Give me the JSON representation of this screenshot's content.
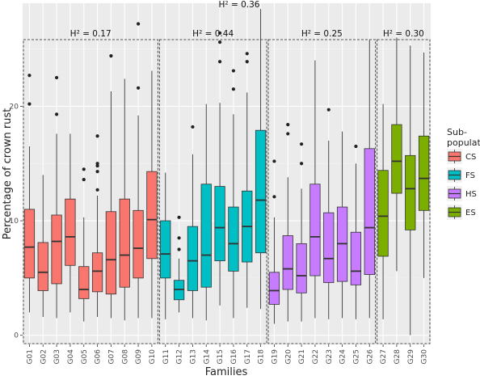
{
  "chart_data": {
    "type": "box",
    "xlabel": "Families",
    "ylabel": "Percentage of crown rust",
    "ylim": [
      -0.8,
      29
    ],
    "yticks": [
      0,
      10,
      20
    ],
    "grid": true,
    "overall_h2": "H² = 0.36",
    "legend": {
      "title_lines": [
        "Sub-",
        "population"
      ],
      "placement": "right",
      "entries": [
        {
          "key": "CS",
          "label": "CS",
          "color": "#F8766D"
        },
        {
          "key": "FS",
          "label": "FS",
          "color": "#00BFC4"
        },
        {
          "key": "HS",
          "label": "HS",
          "color": "#C77CFF"
        },
        {
          "key": "ES",
          "label": "ES",
          "color": "#7CAE00"
        }
      ]
    },
    "groups": [
      {
        "key": "CS",
        "h2": "H² = 0.17",
        "from": 0,
        "to": 9
      },
      {
        "key": "FS",
        "h2": "H² = 0.44",
        "from": 10,
        "to": 17
      },
      {
        "key": "HS",
        "h2": "H² = 0.25",
        "from": 18,
        "to": 25
      },
      {
        "key": "ES",
        "h2": "H² = 0.30",
        "from": 26,
        "to": 29
      }
    ],
    "families": [
      {
        "name": "G01",
        "group": "CS",
        "min": 2.0,
        "q1": 5.0,
        "median": 7.7,
        "q3": 11.0,
        "max": 16.5,
        "outliers": [
          20.2,
          22.7
        ]
      },
      {
        "name": "G02",
        "group": "CS",
        "min": 1.6,
        "q1": 3.9,
        "median": 5.5,
        "q3": 8.1,
        "max": 14.0,
        "outliers": []
      },
      {
        "name": "G03",
        "group": "CS",
        "min": 1.5,
        "q1": 4.5,
        "median": 8.2,
        "q3": 10.5,
        "max": 17.6,
        "outliers": [
          19.3,
          22.5
        ]
      },
      {
        "name": "G04",
        "group": "CS",
        "min": 2.0,
        "q1": 6.1,
        "median": 8.6,
        "q3": 11.9,
        "max": 17.6,
        "outliers": []
      },
      {
        "name": "G05",
        "group": "CS",
        "min": 1.2,
        "q1": 3.2,
        "median": 4.0,
        "q3": 6.0,
        "max": 10.3,
        "outliers": [
          13.6,
          14.5
        ]
      },
      {
        "name": "G06",
        "group": "CS",
        "min": 1.6,
        "q1": 3.8,
        "median": 5.6,
        "q3": 7.2,
        "max": 12.2,
        "outliers": [
          12.7,
          14.3,
          14.8,
          15.0,
          17.4
        ]
      },
      {
        "name": "G07",
        "group": "CS",
        "min": 1.5,
        "q1": 3.6,
        "median": 6.6,
        "q3": 10.8,
        "max": 21.3,
        "outliers": [
          24.4
        ]
      },
      {
        "name": "G08",
        "group": "CS",
        "min": 1.3,
        "q1": 4.2,
        "median": 7.0,
        "q3": 11.9,
        "max": 22.4,
        "outliers": []
      },
      {
        "name": "G09",
        "group": "CS",
        "min": 1.5,
        "q1": 5.0,
        "median": 7.6,
        "q3": 10.9,
        "max": 19.2,
        "outliers": [
          21.6,
          27.2
        ]
      },
      {
        "name": "G10",
        "group": "CS",
        "min": 1.5,
        "q1": 6.7,
        "median": 10.1,
        "q3": 14.3,
        "max": 23.1,
        "outliers": []
      },
      {
        "name": "G11",
        "group": "FS",
        "min": 1.4,
        "q1": 5.0,
        "median": 7.1,
        "q3": 10.0,
        "max": 14.2,
        "outliers": []
      },
      {
        "name": "G12",
        "group": "FS",
        "min": 2.0,
        "q1": 3.1,
        "median": 4.0,
        "q3": 4.8,
        "max": 6.7,
        "outliers": [
          7.5,
          8.5,
          10.3
        ]
      },
      {
        "name": "G13",
        "group": "FS",
        "min": 1.5,
        "q1": 3.9,
        "median": 6.5,
        "q3": 9.5,
        "max": 15.8,
        "outliers": [
          18.2
        ]
      },
      {
        "name": "G14",
        "group": "FS",
        "min": 1.3,
        "q1": 4.2,
        "median": 7.0,
        "q3": 13.2,
        "max": 20.2,
        "outliers": []
      },
      {
        "name": "G15",
        "group": "FS",
        "min": 2.6,
        "q1": 6.5,
        "median": 9.4,
        "q3": 13.0,
        "max": 20.3,
        "outliers": [
          23.9,
          25.6,
          26.4
        ]
      },
      {
        "name": "G16",
        "group": "FS",
        "min": 1.5,
        "q1": 5.6,
        "median": 8.0,
        "q3": 11.2,
        "max": 19.3,
        "outliers": [
          21.5,
          23.1
        ]
      },
      {
        "name": "G17",
        "group": "FS",
        "min": 2.4,
        "q1": 6.4,
        "median": 9.5,
        "q3": 12.6,
        "max": 21.2,
        "outliers": [
          23.9,
          24.6
        ]
      },
      {
        "name": "G18",
        "group": "FS",
        "min": 2.3,
        "q1": 7.2,
        "median": 11.8,
        "q3": 17.9,
        "max": 28.5,
        "outliers": []
      },
      {
        "name": "G19",
        "group": "HS",
        "min": 1.0,
        "q1": 2.7,
        "median": 3.9,
        "q3": 5.5,
        "max": 10.3,
        "outliers": [
          12.1,
          15.2
        ]
      },
      {
        "name": "G20",
        "group": "HS",
        "min": 1.2,
        "q1": 4.0,
        "median": 5.8,
        "q3": 8.7,
        "max": 13.8,
        "outliers": [
          17.6,
          18.4
        ]
      },
      {
        "name": "G21",
        "group": "HS",
        "min": 1.2,
        "q1": 3.7,
        "median": 5.2,
        "q3": 8.0,
        "max": 12.8,
        "outliers": [
          15.0,
          16.7
        ]
      },
      {
        "name": "G22",
        "group": "HS",
        "min": 1.5,
        "q1": 5.2,
        "median": 8.6,
        "q3": 13.2,
        "max": 24.0,
        "outliers": []
      },
      {
        "name": "G23",
        "group": "HS",
        "min": 1.4,
        "q1": 4.6,
        "median": 6.7,
        "q3": 10.7,
        "max": 17.0,
        "outliers": [
          19.7
        ]
      },
      {
        "name": "G24",
        "group": "HS",
        "min": 1.5,
        "q1": 4.7,
        "median": 8.0,
        "q3": 11.2,
        "max": 17.8,
        "outliers": []
      },
      {
        "name": "G25",
        "group": "HS",
        "min": 1.4,
        "q1": 4.4,
        "median": 5.6,
        "q3": 9.0,
        "max": 15.0,
        "outliers": [
          16.5
        ]
      },
      {
        "name": "G26",
        "group": "HS",
        "min": 1.5,
        "q1": 5.3,
        "median": 9.4,
        "q3": 16.3,
        "max": 25.8,
        "outliers": []
      },
      {
        "name": "G27",
        "group": "ES",
        "min": 1.4,
        "q1": 6.9,
        "median": 10.4,
        "q3": 14.4,
        "max": 20.2,
        "outliers": []
      },
      {
        "name": "G28",
        "group": "ES",
        "min": 5.6,
        "q1": 12.4,
        "median": 15.2,
        "q3": 18.4,
        "max": 26.0,
        "outliers": []
      },
      {
        "name": "G29",
        "group": "ES",
        "min": 0.0,
        "q1": 9.2,
        "median": 12.8,
        "q3": 15.7,
        "max": 25.3,
        "outliers": []
      },
      {
        "name": "G30",
        "group": "ES",
        "min": 5.0,
        "q1": 10.9,
        "median": 13.7,
        "q3": 17.4,
        "max": 24.7,
        "outliers": []
      }
    ]
  }
}
